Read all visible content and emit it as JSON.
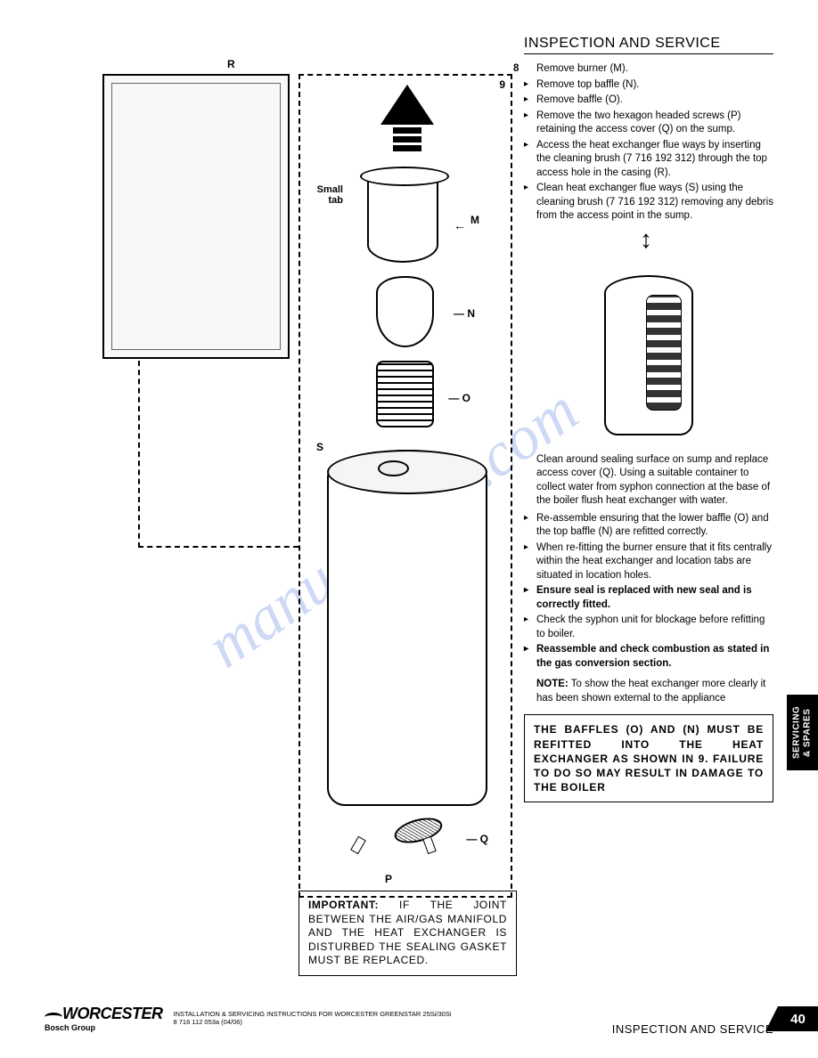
{
  "header": {
    "title": "INSPECTION AND SERVICE"
  },
  "diagram": {
    "figure_number": "9",
    "labels": {
      "R": "R",
      "M": "M",
      "N": "N",
      "O": "O",
      "S": "S",
      "P": "P",
      "Q": "Q"
    },
    "small_tab": "Small\ntab"
  },
  "instructions": {
    "step_number": "8",
    "step8_text": "Remove burner (M).",
    "bullets_top": [
      "Remove top baffle (N).",
      "Remove baffle (O).",
      "Remove the two hexagon headed screws (P) retaining the access cover (Q) on the sump.",
      "Access the heat exchanger flue ways by inserting the cleaning brush (7 716 192 312) through the top access hole in the casing (R).",
      "Clean heat exchanger flue ways (S) using the cleaning brush (7 716 192 312) removing any debris from the access point in the sump."
    ],
    "mid_para": "Clean around sealing surface on sump and replace access cover (Q). Using a suitable container to collect water from syphon connection at the base of the boiler flush heat exchanger with water.",
    "bullets_mid": [
      {
        "text": "Re-assemble ensuring that the lower baffle (O) and the top baffle (N) are refitted correctly.",
        "bold": false
      },
      {
        "text": "When re-fitting the burner ensure that it fits centrally within the heat exchanger and location tabs are situated in location holes.",
        "bold": false
      },
      {
        "text": "Ensure seal is replaced with new seal and is correctly fitted.",
        "bold": true
      },
      {
        "text": "Check the syphon unit for blockage before refitting to boiler.",
        "bold": false
      },
      {
        "text": "Reassemble and check combustion as stated in the gas conversion section.",
        "bold": true
      }
    ],
    "note_label": "NOTE:",
    "note_text": " To show the heat exchanger more clearly it has been shown external to the appliance"
  },
  "warning_box": "THE BAFFLES (O) AND (N) MUST BE REFITTED INTO THE HEAT EXCHANGER AS SHOWN IN 9. FAILURE TO DO SO MAY RESULT IN DAMAGE TO THE BOILER",
  "important_box": {
    "label": "IMPORTANT:",
    "text": " IF THE JOINT BETWEEN THE AIR/GAS MANIFOLD AND THE HEAT EXCHANGER IS DISTURBED THE SEALING GASKET MUST BE REPLACED."
  },
  "side_tab": "SERVICING\n& SPARES",
  "footer": {
    "logo": "WORCESTER",
    "logo_sub": "Bosch Group",
    "line1": "INSTALLATION & SERVICING INSTRUCTIONS FOR WORCESTER GREENSTAR 25Si/30Si",
    "line2": "8 716 112 053a (04/06)",
    "right": "INSPECTION AND SERVICE",
    "page": "40"
  },
  "watermark": "manualshive.com",
  "colors": {
    "text": "#000000",
    "bg": "#ffffff",
    "watermark": "rgba(80,120,220,0.28)"
  }
}
